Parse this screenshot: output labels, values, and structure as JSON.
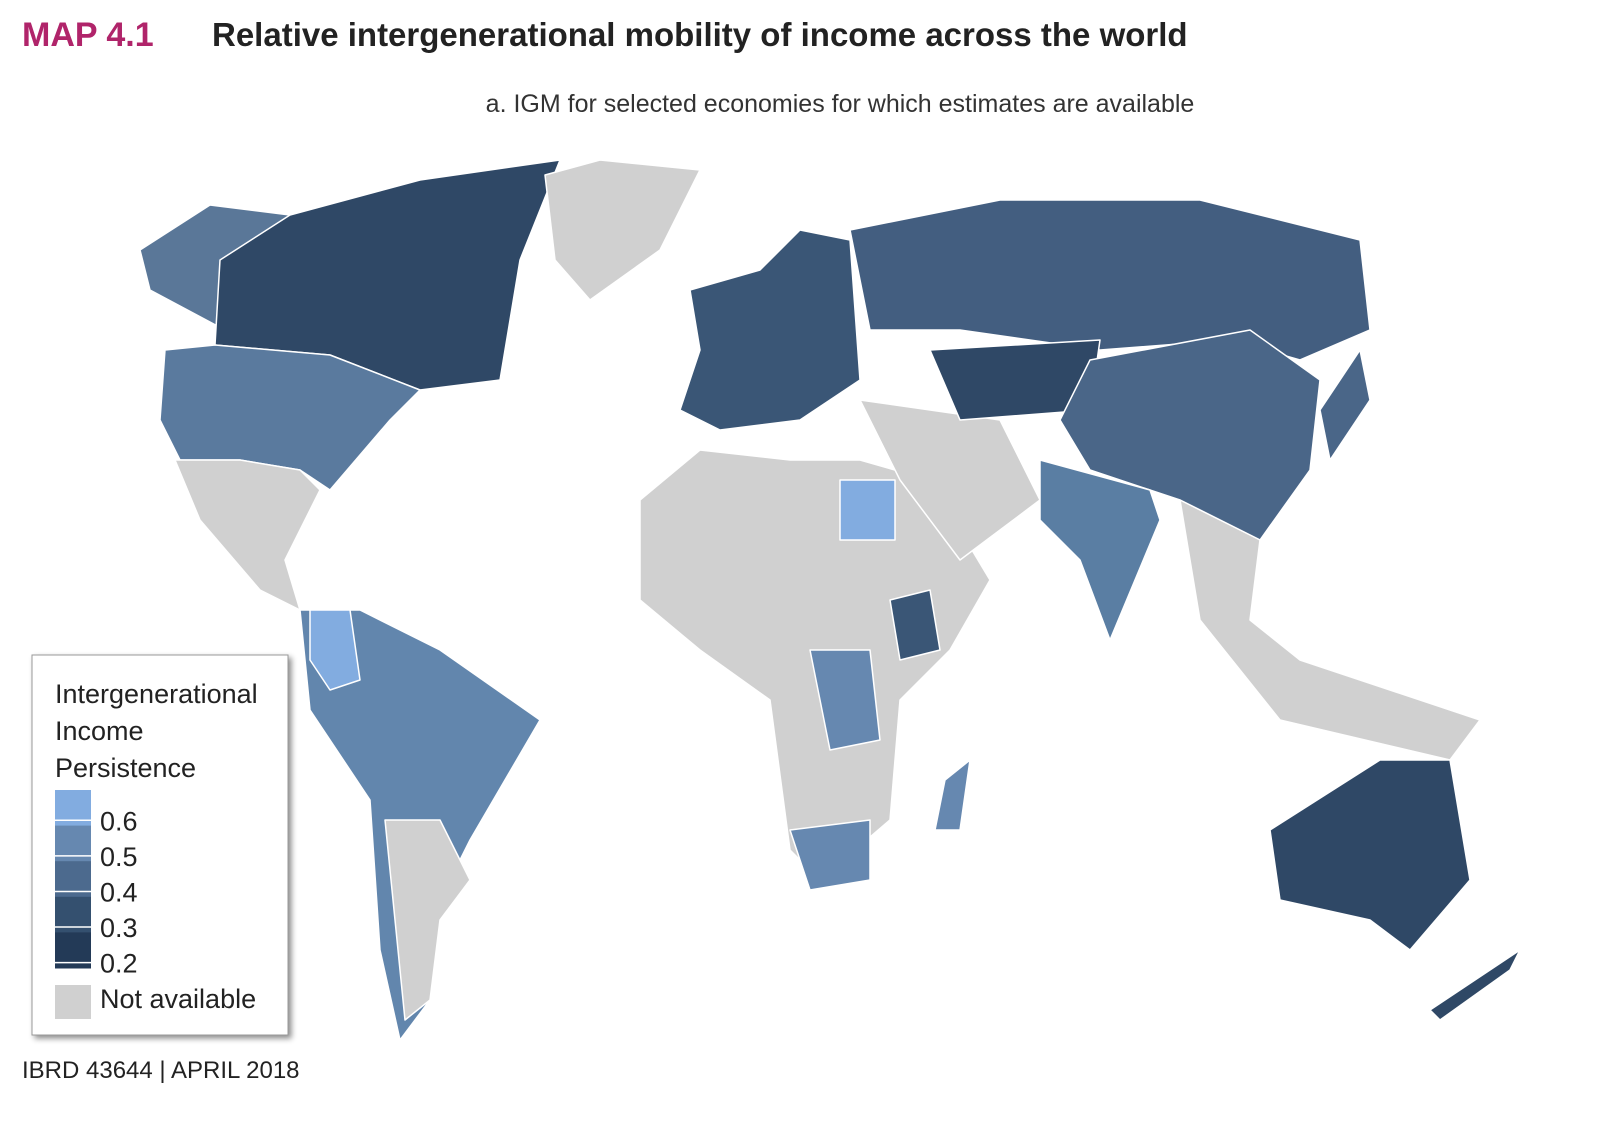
{
  "header": {
    "label": "MAP 4.1",
    "title": "Relative intergenerational mobility of income across the world",
    "subtitle": "a. IGM for selected economies for which estimates are available"
  },
  "legend": {
    "title": [
      "Intergenerational",
      "Income",
      "Persistence"
    ],
    "ticks": [
      0.6,
      0.5,
      0.4,
      0.3,
      0.2
    ],
    "colors": [
      "#82ace0",
      "#6688b0",
      "#4c6a8e",
      "#34506f",
      "#233a57"
    ],
    "not_available": "Not available",
    "not_available_color": "#d0d0d0"
  },
  "footer": "IBRD 43644 | APRIL 2018"
}
